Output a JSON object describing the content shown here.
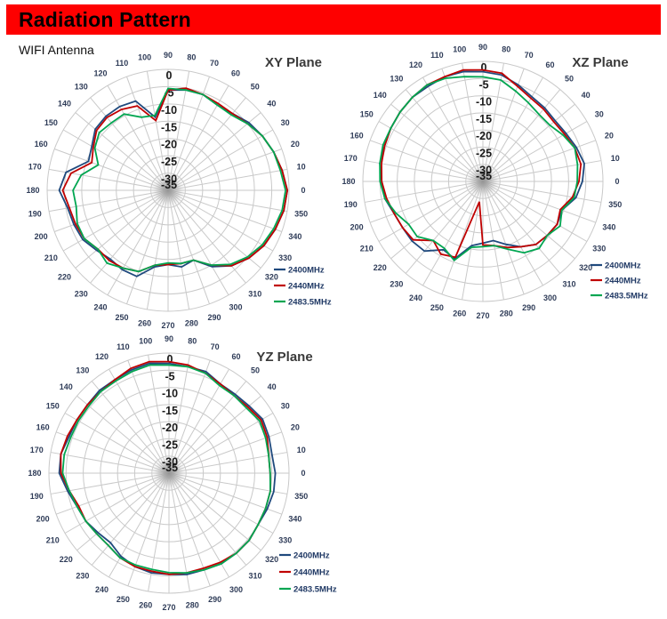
{
  "page": {
    "title": "Radiation Pattern",
    "subtitle": "WIFI Antenna",
    "header_bg": "#fe0000",
    "header_text_color": "#000000",
    "background": "#ffffff",
    "grid_color": "#c9c9c9"
  },
  "chart_data": [
    {
      "type": "line",
      "polar": true,
      "title": "XY Plane",
      "angles_deg": [
        0,
        10,
        20,
        30,
        40,
        50,
        60,
        70,
        80,
        90,
        100,
        110,
        120,
        130,
        140,
        150,
        160,
        170,
        180,
        190,
        200,
        210,
        220,
        230,
        240,
        250,
        260,
        270,
        280,
        290,
        300,
        310,
        320,
        330,
        340,
        350
      ],
      "radial_ticks": [
        0,
        -5,
        -10,
        -15,
        -20,
        -25,
        -30,
        -35
      ],
      "rlim": [
        -35,
        0
      ],
      "units": "dB",
      "grid": true,
      "legend_position": "right-bottom",
      "series": [
        {
          "name": "2400MHz",
          "color": "#1f497d",
          "values": [
            -0.5,
            -1.5,
            -2.5,
            -3.5,
            -4.5,
            -6,
            -6.5,
            -5.5,
            -5.5,
            -6,
            -13.5,
            -7.5,
            -7,
            -7,
            -7.5,
            -9.5,
            -10.5,
            -5,
            -3.5,
            -5.5,
            -6,
            -6.5,
            -8,
            -9,
            -8.5,
            -8.5,
            -12.5,
            -13.5,
            -12.5,
            -13.5,
            -9.5,
            -6.5,
            -4.5,
            -3,
            -2,
            -1
          ]
        },
        {
          "name": "2440MHz",
          "color": "#c00000",
          "values": [
            -0.5,
            -1.5,
            -2.5,
            -3.5,
            -5,
            -6,
            -6,
            -5.5,
            -5,
            -6,
            -14.5,
            -9,
            -8,
            -7.5,
            -8,
            -10,
            -11.5,
            -6.5,
            -4.5,
            -6,
            -6.5,
            -7,
            -8.5,
            -8.5,
            -9,
            -10,
            -13,
            -13.5,
            -13.5,
            -13.5,
            -10,
            -6.5,
            -4.5,
            -3,
            -2,
            -1
          ]
        },
        {
          "name": "2483.5MHz",
          "color": "#00a651",
          "values": [
            -1,
            -2,
            -2.5,
            -3.5,
            -5,
            -6.5,
            -6.5,
            -5.5,
            -5.5,
            -5.5,
            -13,
            -12.5,
            -9.5,
            -9.5,
            -9,
            -10.5,
            -13.5,
            -9.5,
            -7.5,
            -8,
            -7,
            -7,
            -8.5,
            -7.5,
            -9,
            -10,
            -13,
            -14,
            -13.5,
            -13.5,
            -10,
            -7,
            -5,
            -3.5,
            -2.5,
            -1.5
          ]
        }
      ]
    },
    {
      "type": "line",
      "polar": true,
      "title": "XZ Plane",
      "angles_deg": [
        0,
        10,
        20,
        30,
        40,
        50,
        60,
        70,
        80,
        90,
        100,
        110,
        120,
        130,
        140,
        150,
        160,
        170,
        180,
        190,
        200,
        210,
        220,
        230,
        240,
        250,
        260,
        270,
        280,
        290,
        300,
        310,
        320,
        330,
        340,
        350
      ],
      "radial_ticks": [
        0,
        -5,
        -10,
        -15,
        -20,
        -25,
        -30,
        -35
      ],
      "rlim": [
        -35,
        0
      ],
      "units": "dB",
      "grid": true,
      "legend_position": "right-bottom",
      "series": [
        {
          "name": "2400MHz",
          "color": "#1f497d",
          "values": [
            -6,
            -5,
            -6,
            -7,
            -7.5,
            -7,
            -6.5,
            -5,
            -3.5,
            -3,
            -2.5,
            -2.5,
            -3,
            -3,
            -3.5,
            -4,
            -4.5,
            -4.5,
            -5.5,
            -6,
            -7.5,
            -8,
            -8,
            -8.5,
            -12,
            -11,
            -16,
            -17,
            -17.5,
            -15.5,
            -13,
            -11,
            -10.5,
            -10,
            -10.5,
            -7.5
          ]
        },
        {
          "name": "2440MHz",
          "color": "#c00000",
          "values": [
            -7,
            -6,
            -6.5,
            -7.5,
            -8,
            -7.5,
            -7,
            -5.5,
            -3,
            -2.5,
            -2,
            -2.5,
            -2.5,
            -3,
            -3.5,
            -4,
            -4.5,
            -5,
            -5.5,
            -6.5,
            -7.5,
            -8,
            -8.5,
            -12.5,
            -10.5,
            -11.5,
            -29,
            -16.5,
            -16,
            -14.5,
            -13,
            -11,
            -10.5,
            -10,
            -11,
            -8.5
          ]
        },
        {
          "name": "2483.5MHz",
          "color": "#00a651",
          "values": [
            -7.5,
            -7,
            -6.5,
            -8,
            -9.5,
            -9.5,
            -8.5,
            -7,
            -5,
            -4.5,
            -4,
            -3,
            -2.5,
            -3,
            -3.5,
            -4,
            -4,
            -4.5,
            -5,
            -6,
            -8,
            -10,
            -10,
            -12.5,
            -12.5,
            -10.5,
            -15.5,
            -16,
            -16,
            -14,
            -11,
            -9.5,
            -10.5,
            -9,
            -10.5,
            -8
          ]
        }
      ]
    },
    {
      "type": "line",
      "polar": true,
      "title": "YZ Plane",
      "angles_deg": [
        0,
        10,
        20,
        30,
        40,
        50,
        60,
        70,
        80,
        90,
        100,
        110,
        120,
        130,
        140,
        150,
        160,
        170,
        180,
        190,
        200,
        210,
        220,
        230,
        240,
        250,
        260,
        270,
        280,
        290,
        300,
        310,
        320,
        330,
        340,
        350
      ],
      "radial_ticks": [
        0,
        -5,
        -10,
        -15,
        -20,
        -25,
        -30,
        -35
      ],
      "rlim": [
        -35,
        0
      ],
      "units": "dB",
      "grid": true,
      "legend_position": "right-bottom",
      "series": [
        {
          "name": "2400MHz",
          "color": "#1f497d",
          "values": [
            -4,
            -4.5,
            -4,
            -3.5,
            -4.5,
            -5,
            -5,
            -3.5,
            -3.5,
            -3,
            -2.5,
            -3,
            -3.5,
            -3.5,
            -4,
            -4,
            -4,
            -3,
            -3,
            -5,
            -6.5,
            -7,
            -8,
            -8.5,
            -7,
            -6,
            -5.5,
            -5.5,
            -5,
            -5,
            -4.5,
            -4.5,
            -4.5,
            -5,
            -4.5,
            -4
          ]
        },
        {
          "name": "2440MHz",
          "color": "#c00000",
          "values": [
            -5.5,
            -5.5,
            -4.5,
            -4,
            -5,
            -5.5,
            -5,
            -4,
            -3,
            -2.5,
            -2,
            -2.5,
            -3.5,
            -4,
            -4,
            -4,
            -3.5,
            -3,
            -3.5,
            -5.5,
            -7,
            -7,
            -7.5,
            -7.5,
            -6.5,
            -6,
            -6,
            -5.5,
            -5.5,
            -5.5,
            -5,
            -4.5,
            -4.5,
            -5,
            -5,
            -5
          ]
        },
        {
          "name": "2483.5MHz",
          "color": "#00a651",
          "values": [
            -5.5,
            -5.5,
            -5,
            -4.5,
            -5.5,
            -5.5,
            -5.5,
            -4,
            -3.5,
            -3.5,
            -3,
            -3.5,
            -4,
            -4,
            -4.5,
            -4.5,
            -4.5,
            -4,
            -4,
            -5.5,
            -6.5,
            -7,
            -7.5,
            -7.5,
            -6.5,
            -6.5,
            -6.5,
            -6,
            -5.5,
            -5,
            -4.5,
            -4.5,
            -4.5,
            -5,
            -5,
            -5
          ]
        }
      ]
    }
  ]
}
